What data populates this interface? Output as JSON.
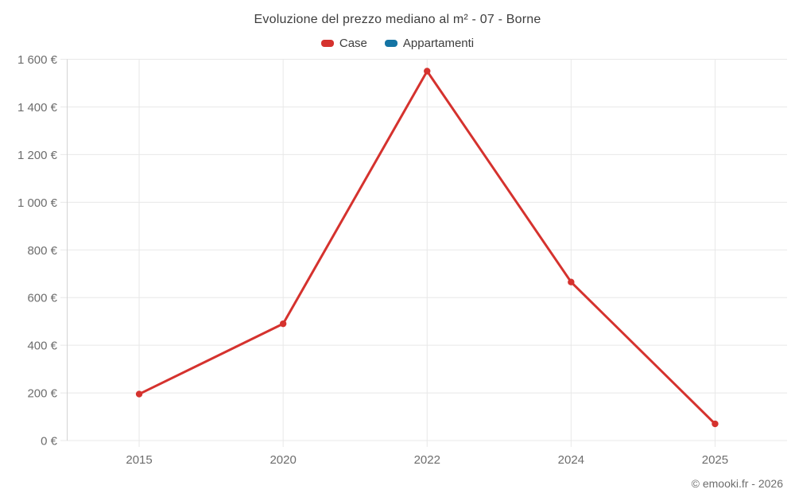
{
  "header": {
    "title": "Evoluzione del prezzo mediano al m² - 07 - Borne"
  },
  "footer": {
    "credit": "© emooki.fr - 2026"
  },
  "chart_data": {
    "type": "line",
    "title": "Evoluzione del prezzo mediano al m² - 07 - Borne",
    "categories": [
      "2015",
      "2020",
      "2022",
      "2024",
      "2025"
    ],
    "series": [
      {
        "name": "Case",
        "color": "#d5322e",
        "values": [
          195,
          490,
          1550,
          665,
          70
        ]
      },
      {
        "name": "Appartamenti",
        "color": "#1474a4",
        "values": []
      }
    ],
    "xlabel": "",
    "ylabel": "",
    "ylim": [
      0,
      1600
    ],
    "ytick_step": 200,
    "ytick_suffix": " €",
    "grid": true,
    "legend_position": "top",
    "colors": {
      "gridline": "#e8e8e8",
      "axis_line": "#d4d4d4",
      "tick_label": "#6d6d6d"
    }
  }
}
